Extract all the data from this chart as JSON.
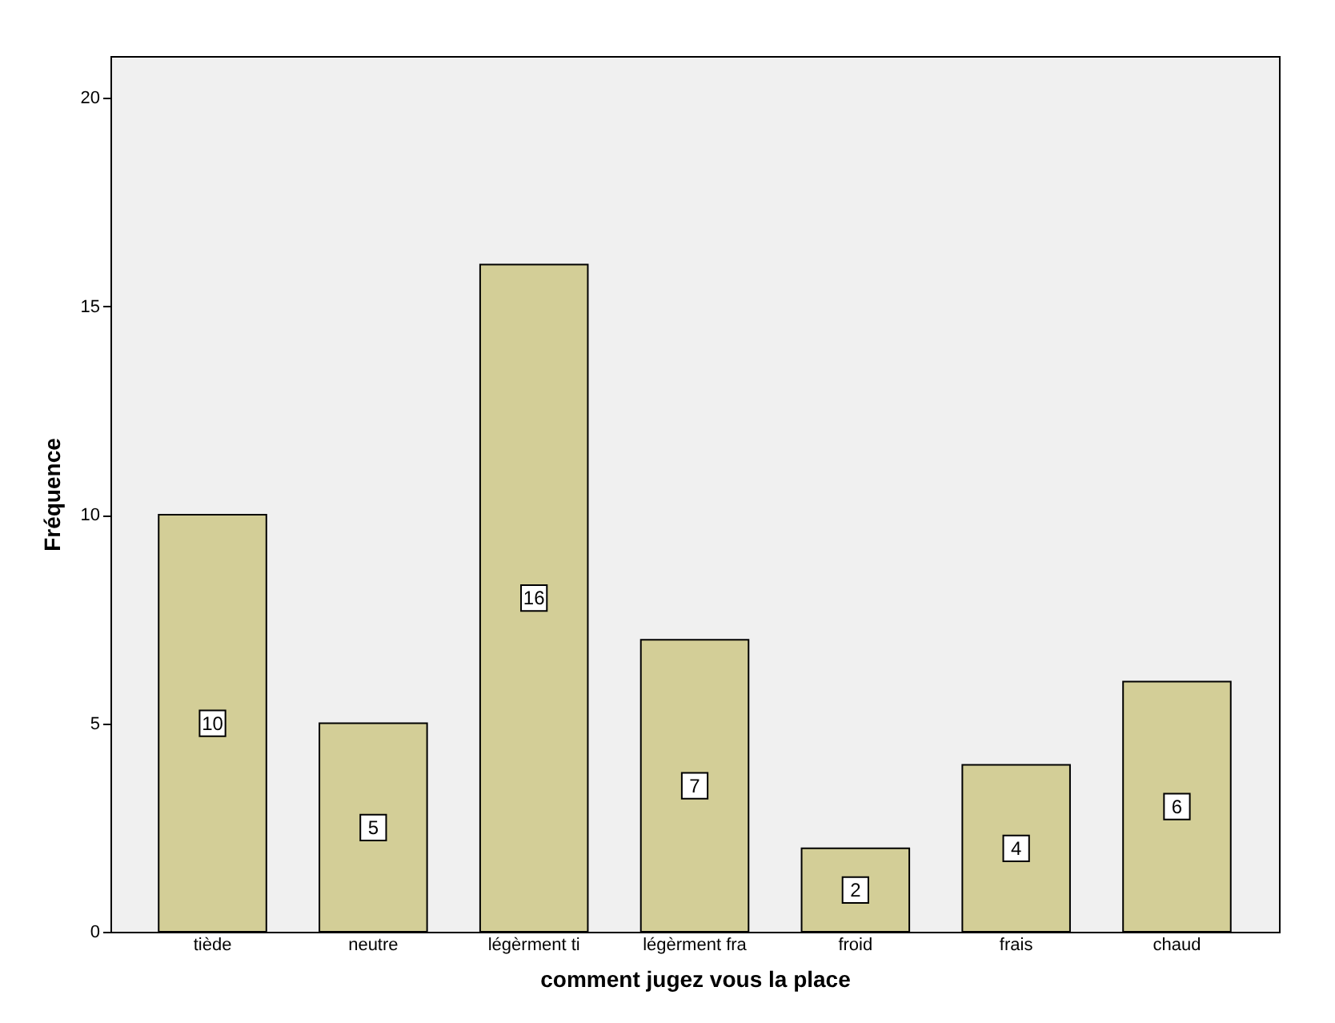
{
  "chart_data": {
    "type": "bar",
    "categories": [
      "tiède",
      "neutre",
      "légèrment ti",
      "légèrment fra",
      "froid",
      "frais",
      "chaud"
    ],
    "values": [
      10,
      5,
      16,
      7,
      2,
      4,
      6
    ],
    "color": "#d3ce97",
    "xlabel": "comment jugez vous la place",
    "ylabel": "Fréquence",
    "ylim": [
      0,
      21
    ],
    "yticks": [
      0,
      5,
      10,
      15,
      20
    ],
    "data_labels": true,
    "grid": false
  }
}
